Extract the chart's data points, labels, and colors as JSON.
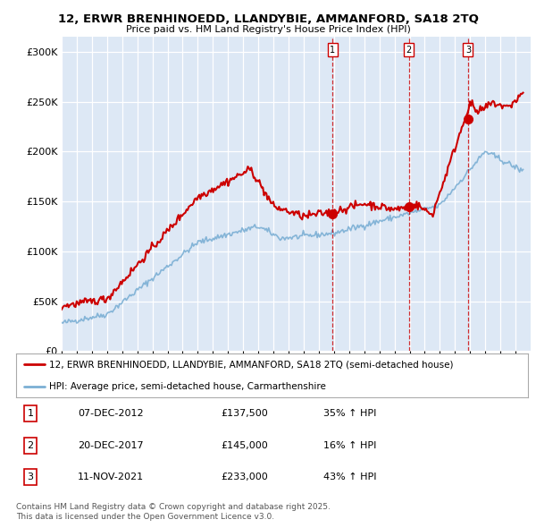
{
  "title": "12, ERWR BRENHINOEDD, LLANDYBIE, AMMANFORD, SA18 2TQ",
  "subtitle": "Price paid vs. HM Land Registry's House Price Index (HPI)",
  "ylabel_ticks": [
    "£0",
    "£50K",
    "£100K",
    "£150K",
    "£200K",
    "£250K",
    "£300K"
  ],
  "ytick_values": [
    0,
    50000,
    100000,
    150000,
    200000,
    250000,
    300000
  ],
  "ylim": [
    0,
    310000
  ],
  "property_color": "#cc0000",
  "hpi_color": "#7bafd4",
  "fig_bg_color": "#ffffff",
  "plot_bg_color": "#dde8f5",
  "legend_property": "12, ERWR BRENHINOEDD, LLANDYBIE, AMMANFORD, SA18 2TQ (semi-detached house)",
  "legend_hpi": "HPI: Average price, semi-detached house, Carmarthenshire",
  "transactions": [
    {
      "num": 1,
      "date": "07-DEC-2012",
      "year": 2012.92,
      "price": 137500,
      "pct": "35%",
      "direction": "↑"
    },
    {
      "num": 2,
      "date": "20-DEC-2017",
      "year": 2017.96,
      "price": 145000,
      "pct": "16%",
      "direction": "↑"
    },
    {
      "num": 3,
      "date": "11-NOV-2021",
      "year": 2021.86,
      "price": 233000,
      "pct": "43%",
      "direction": "↑"
    }
  ],
  "footnote": "Contains HM Land Registry data © Crown copyright and database right 2025.\nThis data is licensed under the Open Government Licence v3.0.",
  "table_rows": [
    [
      "1",
      "07-DEC-2012",
      "£137,500",
      "35% ↑ HPI"
    ],
    [
      "2",
      "20-DEC-2017",
      "£145,000",
      "16% ↑ HPI"
    ],
    [
      "3",
      "11-NOV-2021",
      "£233,000",
      "43% ↑ HPI"
    ]
  ]
}
